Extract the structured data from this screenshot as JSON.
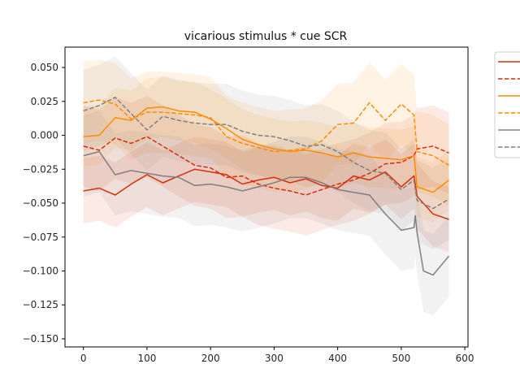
{
  "chart_data": {
    "type": "line",
    "title": "vicarious stimulus * cue SCR",
    "xlabel": "",
    "ylabel": "",
    "xlim": [
      -29,
      605
    ],
    "ylim": [
      -0.156,
      0.065
    ],
    "xticks": [
      0,
      100,
      200,
      300,
      400,
      500,
      600
    ],
    "yticks": [
      -0.15,
      -0.125,
      -0.1,
      -0.075,
      -0.05,
      -0.025,
      0.0,
      0.025,
      0.05
    ],
    "xtick_labels": [
      "0",
      "100",
      "200",
      "300",
      "400",
      "500",
      "600"
    ],
    "ytick_labels": [
      "−0.150",
      "−0.125",
      "−0.100",
      "−0.075",
      "−0.050",
      "−0.025",
      "0.000",
      "0.025",
      "0.050"
    ],
    "grid": false,
    "legend_position": "outside-right",
    "legend_labels_visible": false,
    "series": [
      {
        "color": "#d62f0a",
        "style": "solid",
        "x": [
          0,
          25,
          50,
          75,
          100,
          125,
          150,
          175,
          200,
          225,
          250,
          275,
          300,
          325,
          350,
          375,
          400,
          425,
          450,
          475,
          500,
          520,
          525,
          550,
          575
        ],
        "y": [
          -0.041,
          -0.039,
          -0.044,
          -0.036,
          -0.029,
          -0.035,
          -0.03,
          -0.025,
          -0.027,
          -0.029,
          -0.036,
          -0.033,
          -0.031,
          -0.035,
          -0.032,
          -0.037,
          -0.039,
          -0.03,
          -0.033,
          -0.027,
          -0.038,
          -0.03,
          -0.045,
          -0.058,
          -0.062
        ],
        "band": 0.024
      },
      {
        "color": "#d62f0a",
        "style": "dashed",
        "x": [
          0,
          25,
          50,
          75,
          100,
          125,
          150,
          175,
          200,
          225,
          250,
          275,
          300,
          325,
          350,
          375,
          400,
          425,
          450,
          475,
          500,
          520,
          525,
          550,
          575
        ],
        "y": [
          -0.008,
          -0.011,
          -0.002,
          -0.006,
          -0.001,
          -0.008,
          -0.015,
          -0.022,
          -0.024,
          -0.031,
          -0.03,
          -0.036,
          -0.039,
          -0.041,
          -0.044,
          -0.04,
          -0.036,
          -0.033,
          -0.028,
          -0.021,
          -0.02,
          -0.015,
          -0.01,
          -0.008,
          -0.013
        ],
        "band": 0.03
      },
      {
        "color": "#ff8c00",
        "style": "solid",
        "x": [
          0,
          25,
          50,
          75,
          100,
          125,
          150,
          175,
          200,
          225,
          250,
          275,
          300,
          325,
          350,
          375,
          400,
          425,
          450,
          475,
          500,
          520,
          525,
          550,
          575
        ],
        "y": [
          -0.001,
          0.0,
          0.013,
          0.011,
          0.02,
          0.021,
          0.018,
          0.017,
          0.012,
          0.005,
          -0.003,
          -0.007,
          -0.01,
          -0.012,
          -0.011,
          -0.013,
          -0.016,
          -0.013,
          -0.016,
          -0.017,
          -0.018,
          -0.015,
          -0.038,
          -0.042,
          -0.033
        ],
        "band": 0.022
      },
      {
        "color": "#ff8c00",
        "style": "dashed",
        "x": [
          0,
          25,
          50,
          75,
          100,
          125,
          150,
          175,
          200,
          225,
          250,
          275,
          300,
          325,
          350,
          375,
          400,
          425,
          450,
          475,
          500,
          520,
          525,
          550,
          575
        ],
        "y": [
          0.024,
          0.026,
          0.023,
          0.012,
          0.017,
          0.017,
          0.016,
          0.015,
          0.013,
          -0.001,
          -0.006,
          -0.009,
          -0.012,
          -0.011,
          -0.01,
          -0.004,
          0.008,
          0.009,
          0.024,
          0.011,
          0.023,
          0.015,
          -0.012,
          -0.015,
          -0.022
        ],
        "band": 0.03
      },
      {
        "color": "#808080",
        "style": "solid",
        "x": [
          0,
          25,
          50,
          75,
          100,
          125,
          150,
          175,
          200,
          225,
          250,
          275,
          300,
          325,
          350,
          375,
          400,
          425,
          450,
          475,
          500,
          520,
          522,
          525,
          535,
          550,
          575
        ],
        "y": [
          -0.015,
          -0.012,
          -0.029,
          -0.026,
          -0.028,
          -0.03,
          -0.031,
          -0.037,
          -0.036,
          -0.038,
          -0.041,
          -0.038,
          -0.035,
          -0.031,
          -0.031,
          -0.035,
          -0.04,
          -0.042,
          -0.044,
          -0.058,
          -0.07,
          -0.068,
          -0.059,
          -0.072,
          -0.1,
          -0.103,
          -0.089
        ],
        "band": 0.03
      },
      {
        "color": "#808080",
        "style": "dashed",
        "x": [
          0,
          25,
          50,
          75,
          100,
          125,
          150,
          175,
          200,
          225,
          250,
          275,
          300,
          325,
          350,
          375,
          400,
          425,
          450,
          475,
          500,
          520,
          525,
          550,
          575
        ],
        "y": [
          0.018,
          0.022,
          0.028,
          0.016,
          0.004,
          0.014,
          0.011,
          0.009,
          0.008,
          0.008,
          0.003,
          0.0,
          -0.001,
          -0.004,
          -0.008,
          -0.007,
          -0.012,
          -0.02,
          -0.026,
          -0.028,
          -0.04,
          -0.033,
          -0.048,
          -0.054,
          -0.047
        ],
        "band": 0.03
      }
    ]
  }
}
